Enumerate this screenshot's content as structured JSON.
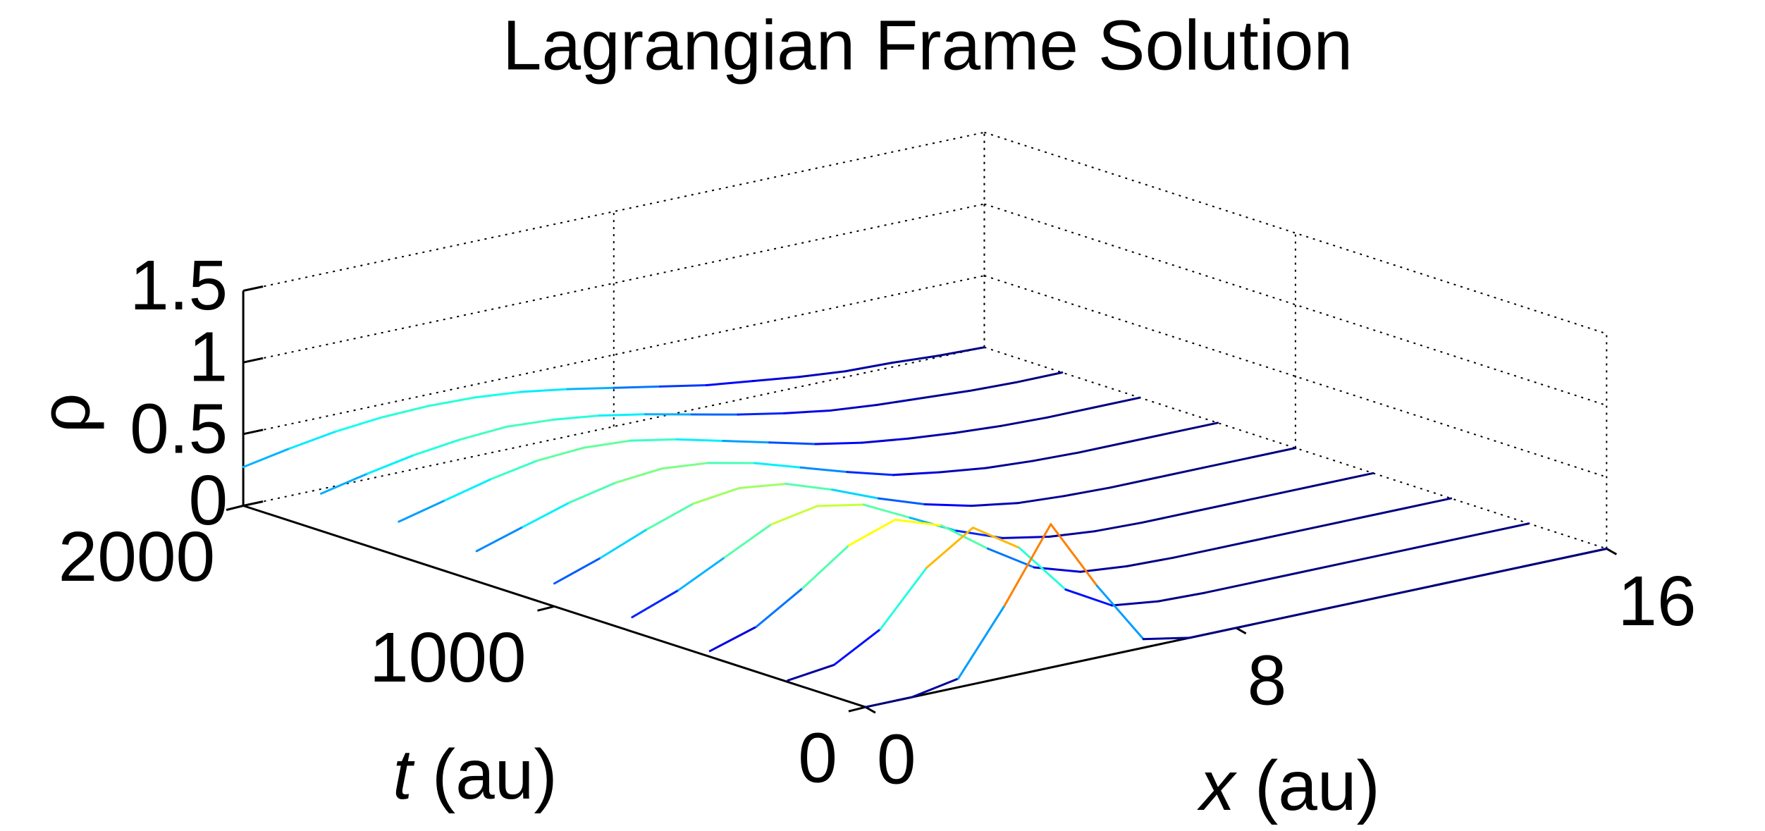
{
  "chart_data": {
    "type": "waterfall3d",
    "title": "Lagrangian Frame Solution",
    "x_label": {
      "symbol": "x",
      "unit": "(au)"
    },
    "t_label": {
      "symbol": "t",
      "unit": "(au)"
    },
    "z_label": "ρ",
    "colormap": "jet",
    "grid": true,
    "xlim": [
      0,
      16
    ],
    "xticks": [
      0,
      8,
      16
    ],
    "tlim": [
      0,
      2000
    ],
    "tticks": [
      0,
      1000,
      2000
    ],
    "zlim": [
      0,
      1.5
    ],
    "zticks": [
      0,
      0.5,
      1,
      1.5
    ],
    "x": [
      0,
      1,
      2,
      3,
      4,
      5,
      6,
      7,
      8,
      9,
      10,
      11,
      12,
      13,
      14,
      15,
      16
    ],
    "t": [
      0,
      250,
      500,
      750,
      1000,
      1250,
      1500,
      1750,
      2000
    ],
    "z": [
      [
        0,
        0,
        0.06,
        0.5,
        1,
        0.5,
        0.06,
        0,
        0,
        0,
        0,
        0,
        0,
        0,
        0,
        0,
        0
      ],
      [
        0.01,
        0.05,
        0.23,
        0.59,
        0.8,
        0.59,
        0.23,
        0.05,
        0.01,
        0,
        0,
        0,
        0,
        0,
        0,
        0,
        0
      ],
      [
        0.04,
        0.14,
        0.34,
        0.57,
        0.68,
        0.57,
        0.34,
        0.14,
        0.04,
        0.01,
        0,
        0,
        0,
        0,
        0,
        0,
        0
      ],
      [
        0.1,
        0.22,
        0.38,
        0.54,
        0.6,
        0.54,
        0.38,
        0.22,
        0.1,
        0.04,
        0.01,
        0,
        0,
        0,
        0,
        0,
        0
      ],
      [
        0.16,
        0.27,
        0.4,
        0.51,
        0.55,
        0.51,
        0.4,
        0.27,
        0.16,
        0.08,
        0.03,
        0.01,
        0,
        0,
        0,
        0,
        0
      ],
      [
        0.21,
        0.31,
        0.41,
        0.48,
        0.51,
        0.48,
        0.41,
        0.31,
        0.21,
        0.12,
        0.07,
        0.03,
        0.01,
        0,
        0,
        0,
        0
      ],
      [
        0.24,
        0.32,
        0.4,
        0.46,
        0.48,
        0.46,
        0.4,
        0.32,
        0.24,
        0.16,
        0.1,
        0.06,
        0.03,
        0.01,
        0,
        0,
        0
      ],
      [
        0.26,
        0.33,
        0.39,
        0.43,
        0.45,
        0.43,
        0.39,
        0.33,
        0.26,
        0.19,
        0.13,
        0.08,
        0.05,
        0.03,
        0.01,
        0,
        0
      ],
      [
        0.27,
        0.33,
        0.38,
        0.41,
        0.42,
        0.41,
        0.38,
        0.33,
        0.27,
        0.21,
        0.15,
        0.11,
        0.07,
        0.04,
        0.03,
        0.01,
        0
      ]
    ]
  }
}
